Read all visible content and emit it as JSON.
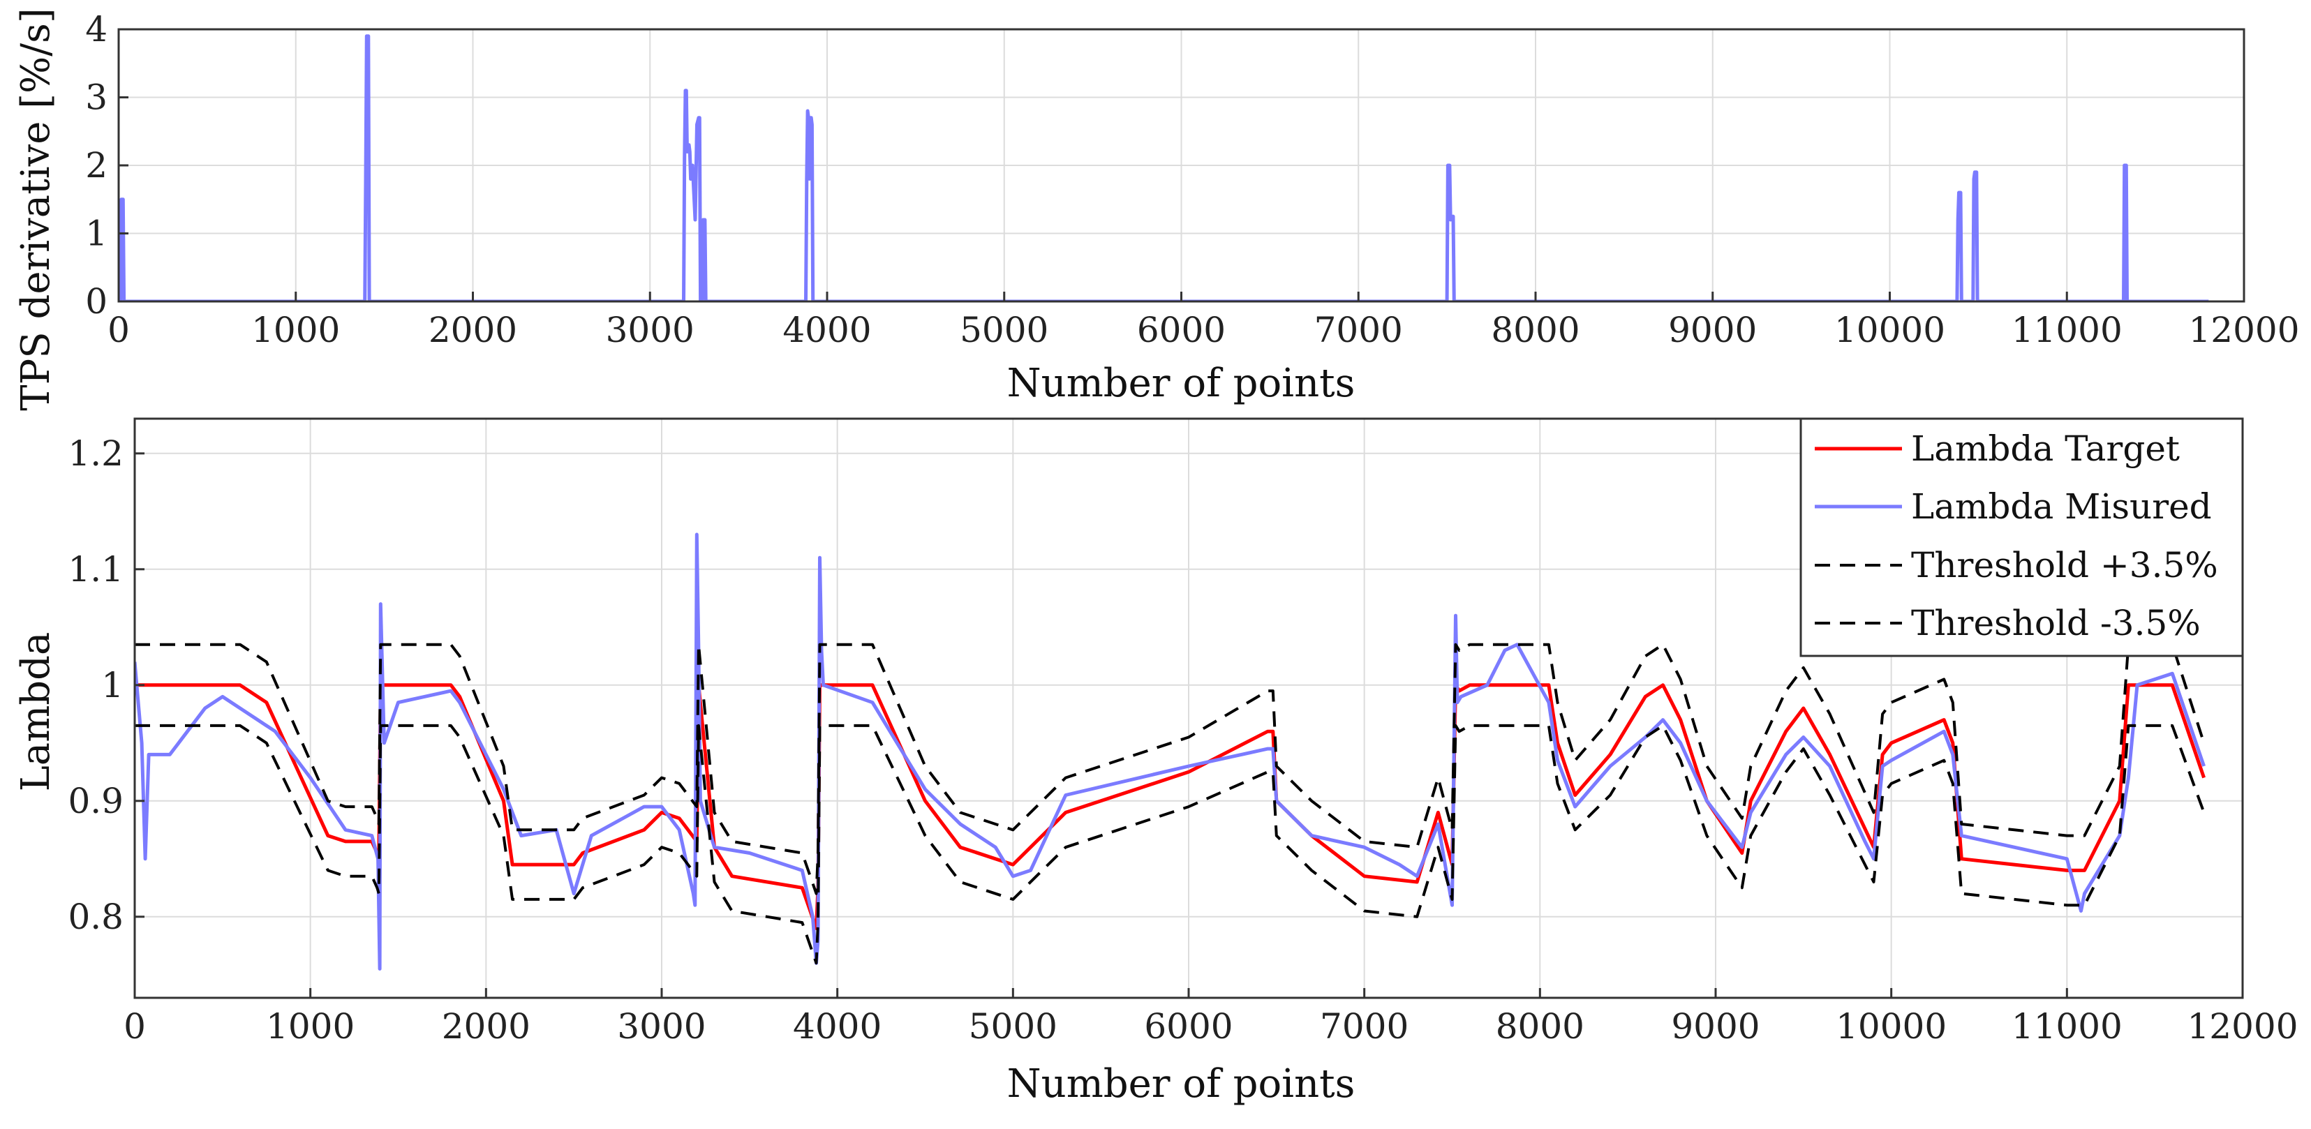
{
  "chart_data": [
    {
      "type": "line",
      "id": "top",
      "title": "",
      "xlabel": "Number of points",
      "ylabel": "TPS derivative [%/s]",
      "xlim": [
        0,
        12000
      ],
      "ylim": [
        0,
        4
      ],
      "x_ticks": [
        "0",
        "1000",
        "2000",
        "3000",
        "4000",
        "5000",
        "6000",
        "7000",
        "8000",
        "9000",
        "10000",
        "11000",
        "12000"
      ],
      "y_ticks": [
        "0",
        "1",
        "2",
        "3",
        "4"
      ],
      "grid": true,
      "series": [
        {
          "name": "TPS derivative",
          "color": "#7b7bff",
          "x": [
            0,
            10,
            15,
            25,
            30,
            35,
            1390,
            1395,
            1400,
            1405,
            1410,
            1415,
            3190,
            3195,
            3200,
            3205,
            3210,
            3215,
            3220,
            3225,
            3230,
            3240,
            3255,
            3265,
            3275,
            3280,
            3285,
            3295,
            3300,
            3305,
            3310,
            3315,
            3320,
            3325,
            3330,
            3335,
            3340,
            3880,
            3885,
            3890,
            3895,
            3900,
            3905,
            3910,
            3915,
            3920,
            3925,
            3930,
            3935,
            7500,
            7505,
            7510,
            7515,
            7520,
            7525,
            7530,
            7535,
            7540,
            7545,
            7550,
            7555,
            10380,
            10385,
            10390,
            10395,
            10400,
            10405,
            10410,
            10415,
            10470,
            10475,
            10480,
            10485,
            10490,
            10495,
            10500,
            10505,
            11320,
            11325,
            11330,
            11335,
            11340,
            11345,
            11800
          ],
          "y": [
            0,
            0,
            1.5,
            1.5,
            0,
            0,
            0,
            1.8,
            3.9,
            3.9,
            3.9,
            0,
            0,
            2.1,
            3.1,
            3.1,
            2.2,
            2.3,
            2.3,
            2.2,
            1.8,
            2.0,
            1.2,
            2.6,
            2.7,
            2.7,
            0,
            0,
            1.2,
            1.2,
            1.2,
            0,
            0,
            0,
            0,
            0,
            0,
            0,
            1.8,
            2.8,
            2.7,
            1.8,
            2.7,
            2.7,
            2.6,
            0,
            0,
            0,
            0,
            0,
            2.0,
            2.0,
            2.0,
            1.2,
            1.25,
            1.25,
            1.25,
            0,
            0,
            0,
            0,
            0,
            1.2,
            1.6,
            1.6,
            1.6,
            0,
            0,
            0,
            0,
            1.8,
            1.9,
            1.9,
            1.9,
            0,
            0,
            0,
            0,
            2.0,
            2.0,
            2.0,
            0,
            0,
            0
          ]
        }
      ]
    },
    {
      "type": "line",
      "id": "bottom",
      "title": "",
      "xlabel": "Number of points",
      "ylabel": "Lambda",
      "xlim": [
        0,
        12000
      ],
      "ylim": [
        0.73,
        1.23
      ],
      "x_ticks": [
        "0",
        "1000",
        "2000",
        "3000",
        "4000",
        "5000",
        "6000",
        "7000",
        "8000",
        "9000",
        "10000",
        "11000",
        "12000"
      ],
      "y_ticks": [
        "0.8",
        "0.9",
        "1",
        "1.1",
        "1.2"
      ],
      "grid": true,
      "legend_position": "top-right",
      "series": [
        {
          "name": "Lambda Target",
          "color": "#ff0000",
          "style": "solid",
          "x": [
            0,
            600,
            750,
            1100,
            1200,
            1350,
            1380,
            1390,
            1400,
            1800,
            1850,
            2100,
            2150,
            2500,
            2550,
            2900,
            3000,
            3100,
            3200,
            3210,
            3300,
            3400,
            3800,
            3880,
            3890,
            3900,
            4200,
            4500,
            4700,
            5000,
            5300,
            6000,
            6450,
            6480,
            6500,
            6700,
            7000,
            7300,
            7420,
            7500,
            7520,
            7540,
            7600,
            8050,
            8100,
            8200,
            8400,
            8600,
            8700,
            8800,
            8950,
            9150,
            9200,
            9400,
            9500,
            9650,
            9900,
            9950,
            10000,
            10300,
            10350,
            10400,
            10700,
            11000,
            11100,
            11300,
            11350,
            11400,
            11600,
            11780
          ],
          "y": [
            1.0,
            1.0,
            0.985,
            0.87,
            0.865,
            0.865,
            0.855,
            0.85,
            1.0,
            1.0,
            0.99,
            0.9,
            0.845,
            0.845,
            0.855,
            0.875,
            0.89,
            0.885,
            0.865,
            1.0,
            0.86,
            0.835,
            0.825,
            0.79,
            0.825,
            1.0,
            1.0,
            0.9,
            0.86,
            0.845,
            0.89,
            0.925,
            0.96,
            0.96,
            0.9,
            0.87,
            0.835,
            0.83,
            0.89,
            0.845,
            1.0,
            0.995,
            1.0,
            1.0,
            0.95,
            0.905,
            0.94,
            0.99,
            1.0,
            0.97,
            0.9,
            0.855,
            0.9,
            0.96,
            0.98,
            0.94,
            0.86,
            0.94,
            0.95,
            0.97,
            0.95,
            0.85,
            0.845,
            0.84,
            0.84,
            0.9,
            1.0,
            1.0,
            1.0,
            0.92
          ]
        },
        {
          "name": "Lambda Misured",
          "color": "#7b7bff",
          "style": "solid",
          "x": [
            0,
            40,
            60,
            80,
            200,
            400,
            500,
            700,
            800,
            1000,
            1200,
            1350,
            1385,
            1395,
            1400,
            1420,
            1500,
            1800,
            1850,
            2100,
            2200,
            2400,
            2500,
            2600,
            2900,
            3000,
            3100,
            3180,
            3190,
            3200,
            3210,
            3220,
            3300,
            3500,
            3800,
            3860,
            3880,
            3890,
            3900,
            3910,
            3920,
            4200,
            4500,
            4700,
            4900,
            5000,
            5100,
            5300,
            6000,
            6450,
            6480,
            6500,
            6700,
            7000,
            7200,
            7300,
            7420,
            7500,
            7520,
            7530,
            7550,
            7700,
            7800,
            7870,
            8050,
            8100,
            8200,
            8400,
            8600,
            8700,
            8800,
            8950,
            9150,
            9200,
            9400,
            9500,
            9650,
            9850,
            9900,
            9950,
            10000,
            10300,
            10350,
            10400,
            10700,
            11000,
            11080,
            11100,
            11300,
            11350,
            11400,
            11500,
            11600,
            11780
          ],
          "y": [
            1.02,
            0.95,
            0.85,
            0.94,
            0.94,
            0.98,
            0.99,
            0.97,
            0.96,
            0.92,
            0.875,
            0.87,
            0.85,
            0.755,
            1.07,
            0.95,
            0.985,
            0.995,
            0.985,
            0.91,
            0.87,
            0.875,
            0.82,
            0.87,
            0.895,
            0.895,
            0.875,
            0.82,
            0.81,
            1.13,
            1.03,
            0.9,
            0.86,
            0.855,
            0.84,
            0.8,
            0.76,
            0.78,
            1.11,
            1.03,
            1.0,
            0.985,
            0.91,
            0.88,
            0.86,
            0.835,
            0.84,
            0.905,
            0.93,
            0.945,
            0.945,
            0.9,
            0.87,
            0.86,
            0.845,
            0.835,
            0.88,
            0.81,
            1.06,
            0.985,
            0.99,
            1.0,
            1.03,
            1.035,
            0.985,
            0.935,
            0.895,
            0.93,
            0.955,
            0.97,
            0.95,
            0.9,
            0.86,
            0.89,
            0.94,
            0.955,
            0.93,
            0.865,
            0.85,
            0.93,
            0.935,
            0.96,
            0.94,
            0.87,
            0.86,
            0.85,
            0.805,
            0.82,
            0.87,
            0.92,
            1.0,
            1.005,
            1.01,
            0.93
          ]
        },
        {
          "name": "Threshold +3.5%",
          "color": "#000000",
          "style": "dashed",
          "x": [
            0,
            600,
            750,
            1100,
            1200,
            1350,
            1380,
            1390,
            1400,
            1800,
            1850,
            2100,
            2150,
            2500,
            2550,
            2900,
            3000,
            3100,
            3200,
            3210,
            3300,
            3400,
            3800,
            3880,
            3890,
            3900,
            4200,
            4500,
            4700,
            5000,
            5300,
            6000,
            6450,
            6480,
            6500,
            6700,
            7000,
            7300,
            7420,
            7500,
            7520,
            7540,
            7600,
            8050,
            8100,
            8200,
            8400,
            8600,
            8700,
            8800,
            8950,
            9150,
            9200,
            9400,
            9500,
            9650,
            9900,
            9950,
            10000,
            10300,
            10350,
            10400,
            10700,
            11000,
            11100,
            11300,
            11350,
            11400,
            11600,
            11780
          ],
          "y": [
            1.035,
            1.035,
            1.02,
            0.9,
            0.895,
            0.895,
            0.885,
            0.88,
            1.035,
            1.035,
            1.025,
            0.93,
            0.875,
            0.875,
            0.885,
            0.905,
            0.92,
            0.915,
            0.895,
            1.035,
            0.89,
            0.865,
            0.855,
            0.82,
            0.855,
            1.035,
            1.035,
            0.93,
            0.89,
            0.875,
            0.92,
            0.955,
            0.995,
            0.995,
            0.93,
            0.9,
            0.865,
            0.86,
            0.92,
            0.875,
            1.035,
            1.03,
            1.035,
            1.035,
            0.985,
            0.935,
            0.97,
            1.025,
            1.035,
            1.005,
            0.93,
            0.885,
            0.93,
            0.995,
            1.015,
            0.975,
            0.89,
            0.975,
            0.985,
            1.005,
            0.985,
            0.88,
            0.875,
            0.87,
            0.87,
            0.93,
            1.035,
            1.035,
            1.035,
            0.95
          ]
        },
        {
          "name": "Threshold -3.5%",
          "color": "#000000",
          "style": "dashed",
          "x": [
            0,
            600,
            750,
            1100,
            1200,
            1350,
            1380,
            1390,
            1400,
            1800,
            1850,
            2100,
            2150,
            2500,
            2550,
            2900,
            3000,
            3100,
            3200,
            3210,
            3300,
            3400,
            3800,
            3880,
            3890,
            3900,
            4200,
            4500,
            4700,
            5000,
            5300,
            6000,
            6450,
            6480,
            6500,
            6700,
            7000,
            7300,
            7420,
            7500,
            7520,
            7540,
            7600,
            8050,
            8100,
            8200,
            8400,
            8600,
            8700,
            8800,
            8950,
            9150,
            9200,
            9400,
            9500,
            9650,
            9900,
            9950,
            10000,
            10300,
            10350,
            10400,
            10700,
            11000,
            11100,
            11300,
            11350,
            11400,
            11600,
            11780
          ],
          "y": [
            0.965,
            0.965,
            0.95,
            0.84,
            0.835,
            0.835,
            0.825,
            0.82,
            0.965,
            0.965,
            0.955,
            0.87,
            0.815,
            0.815,
            0.825,
            0.845,
            0.86,
            0.855,
            0.835,
            0.965,
            0.83,
            0.805,
            0.795,
            0.76,
            0.795,
            0.965,
            0.965,
            0.87,
            0.83,
            0.815,
            0.86,
            0.895,
            0.925,
            0.925,
            0.87,
            0.84,
            0.805,
            0.8,
            0.86,
            0.815,
            0.965,
            0.96,
            0.965,
            0.965,
            0.915,
            0.875,
            0.905,
            0.955,
            0.965,
            0.935,
            0.87,
            0.825,
            0.87,
            0.925,
            0.945,
            0.905,
            0.83,
            0.905,
            0.915,
            0.935,
            0.915,
            0.82,
            0.815,
            0.81,
            0.81,
            0.87,
            0.965,
            0.965,
            0.965,
            0.89
          ]
        }
      ]
    }
  ]
}
